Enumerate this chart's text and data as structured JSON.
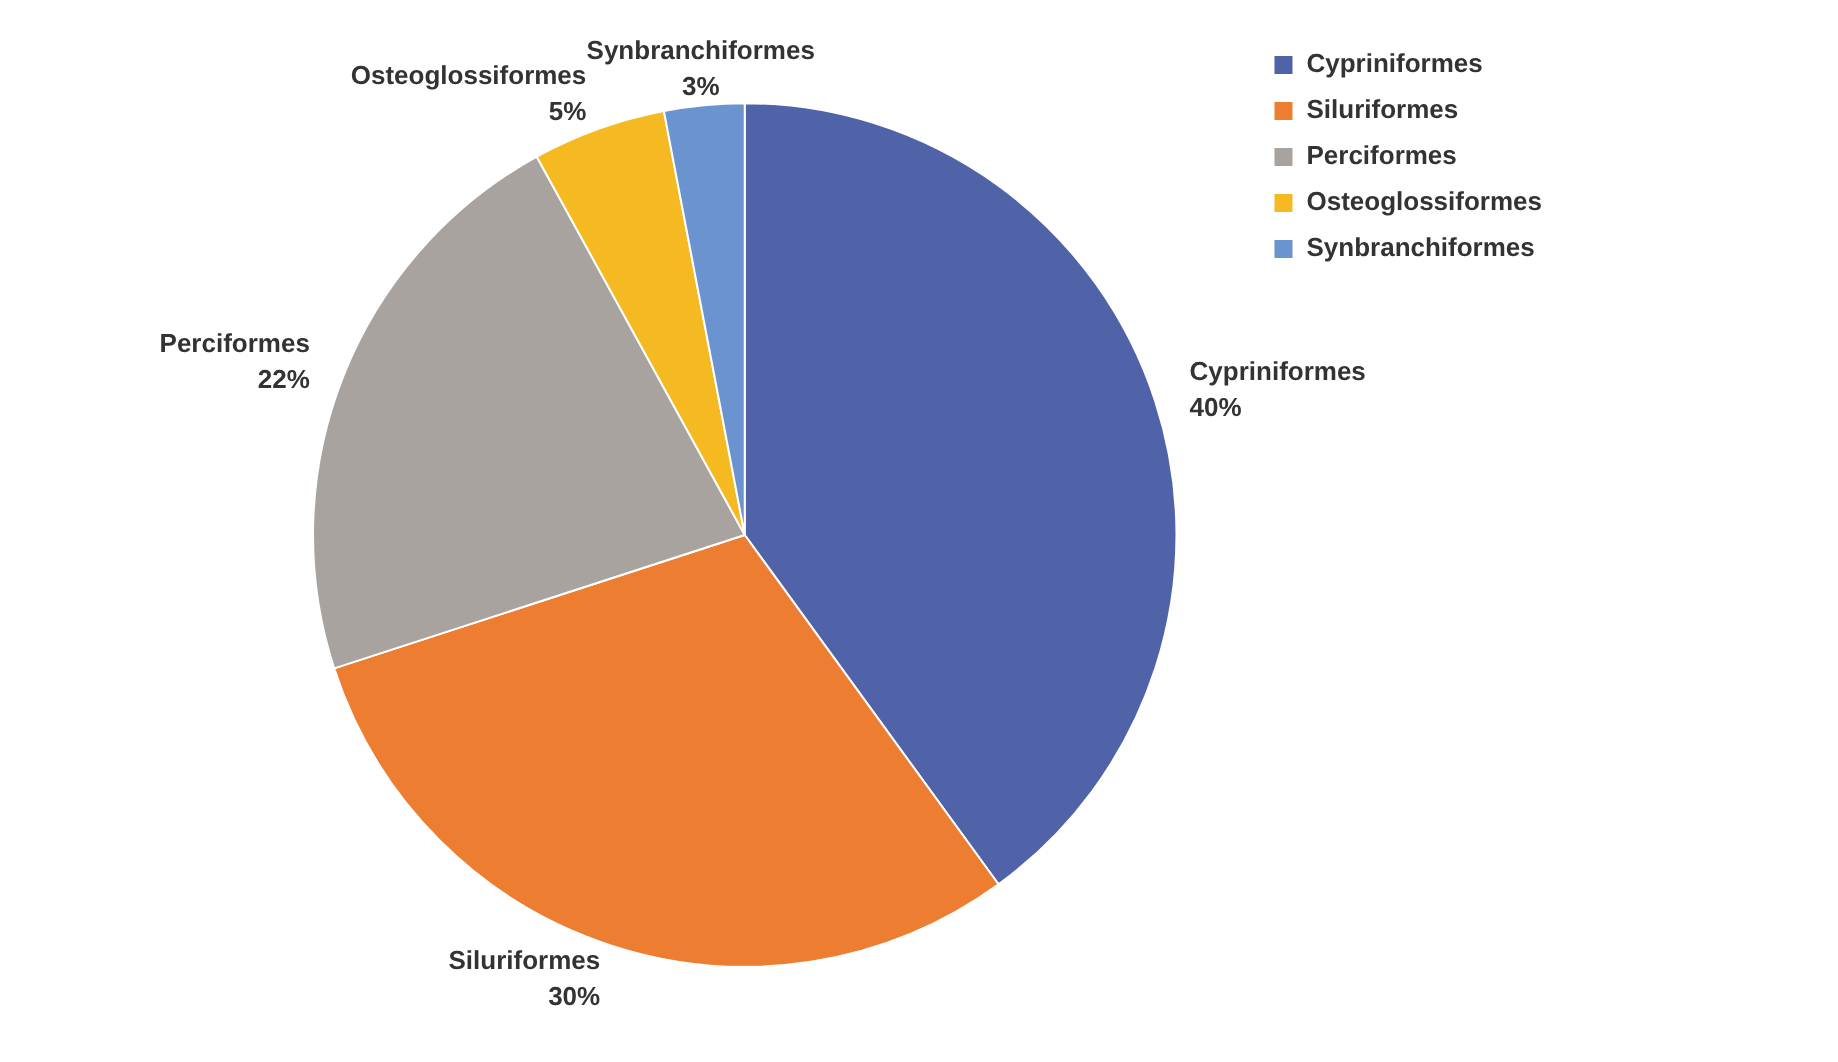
{
  "chart_data": {
    "type": "pie",
    "categories": [
      "Cypriniformes",
      "Siluriformes",
      "Perciformes",
      "Osteoglossiformes",
      "Synbranchiformes"
    ],
    "values": [
      40,
      30,
      22,
      5,
      3
    ],
    "colors": [
      "#5062a8",
      "#ed7d31",
      "#a8a39f",
      "#f5b922",
      "#6a93cf"
    ],
    "value_labels": [
      "40%",
      "30%",
      "22%",
      "5%",
      "3%"
    ],
    "legend": "top right"
  }
}
